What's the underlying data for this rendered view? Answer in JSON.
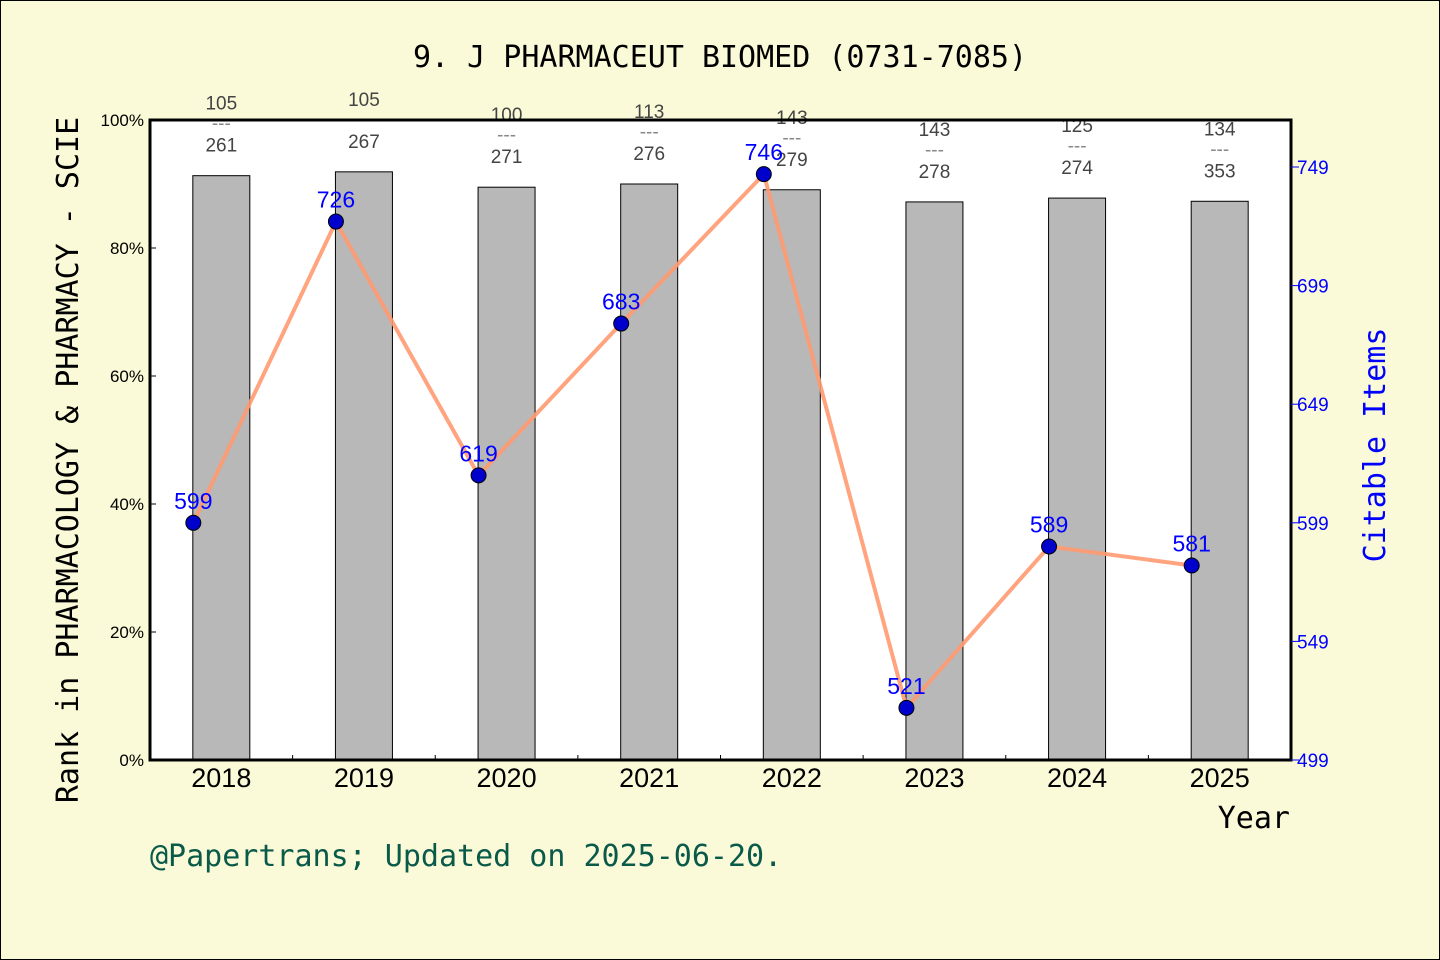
{
  "chart_data": {
    "type": "bar",
    "title": "9. J PHARMACEUT BIOMED (0731-7085)",
    "xlabel": "Year",
    "ylabel": "Rank in PHARMACOLOGY & PHARMACY - SCIE",
    "y2label": "Citable Items",
    "categories": [
      "2018",
      "2019",
      "2020",
      "2021",
      "2022",
      "2023",
      "2024",
      "2025"
    ],
    "ylim": [
      0,
      100
    ],
    "yticks": [
      "0%",
      "20%",
      "40%",
      "60%",
      "80%",
      "100%"
    ],
    "y2lim": [
      499,
      749
    ],
    "y2ticks": [
      "499",
      "549",
      "599",
      "649",
      "699",
      "749"
    ],
    "bar_values_percent": [
      91.3,
      91.9,
      89.5,
      90.0,
      89.1,
      87.2,
      87.8,
      87.3
    ],
    "rank_labels": [
      {
        "rank": "105",
        "total": "261"
      },
      {
        "rank": "105",
        "total": "267"
      },
      {
        "rank": "100",
        "total": "271"
      },
      {
        "rank": "113",
        "total": "276"
      },
      {
        "rank": "143",
        "total": "279"
      },
      {
        "rank": "143",
        "total": "278"
      },
      {
        "rank": "125",
        "total": "274"
      },
      {
        "rank": "134",
        "total": "353"
      }
    ],
    "separator": "---",
    "line_series": {
      "values": [
        599,
        726,
        619,
        683,
        746,
        521,
        589,
        581
      ]
    },
    "colors": {
      "bar": "#b8b8b8",
      "line": "#ff9a70",
      "point": "#0000cc",
      "right_axis": "#0000ff",
      "background": "#fafad8",
      "footer": "#0a5a4a"
    }
  },
  "footer": "@Papertrans; Updated on 2025-06-20."
}
